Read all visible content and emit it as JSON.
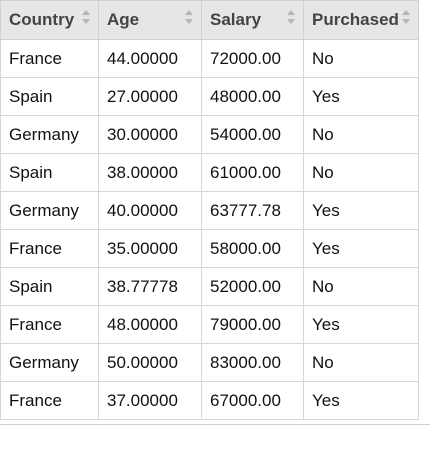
{
  "table": {
    "columns": [
      "Country",
      "Age",
      "Salary",
      "Purchased"
    ],
    "rows": [
      [
        "France",
        "44.00000",
        "72000.00",
        "No"
      ],
      [
        "Spain",
        "27.00000",
        "48000.00",
        "Yes"
      ],
      [
        "Germany",
        "30.00000",
        "54000.00",
        "No"
      ],
      [
        "Spain",
        "38.00000",
        "61000.00",
        "No"
      ],
      [
        "Germany",
        "40.00000",
        "63777.78",
        "Yes"
      ],
      [
        "France",
        "35.00000",
        "58000.00",
        "Yes"
      ],
      [
        "Spain",
        "38.77778",
        "52000.00",
        "No"
      ],
      [
        "France",
        "48.00000",
        "79000.00",
        "Yes"
      ],
      [
        "Germany",
        "50.00000",
        "83000.00",
        "No"
      ],
      [
        "France",
        "37.00000",
        "67000.00",
        "Yes"
      ]
    ]
  },
  "icons": {
    "sort": "sort-arrows-icon"
  }
}
